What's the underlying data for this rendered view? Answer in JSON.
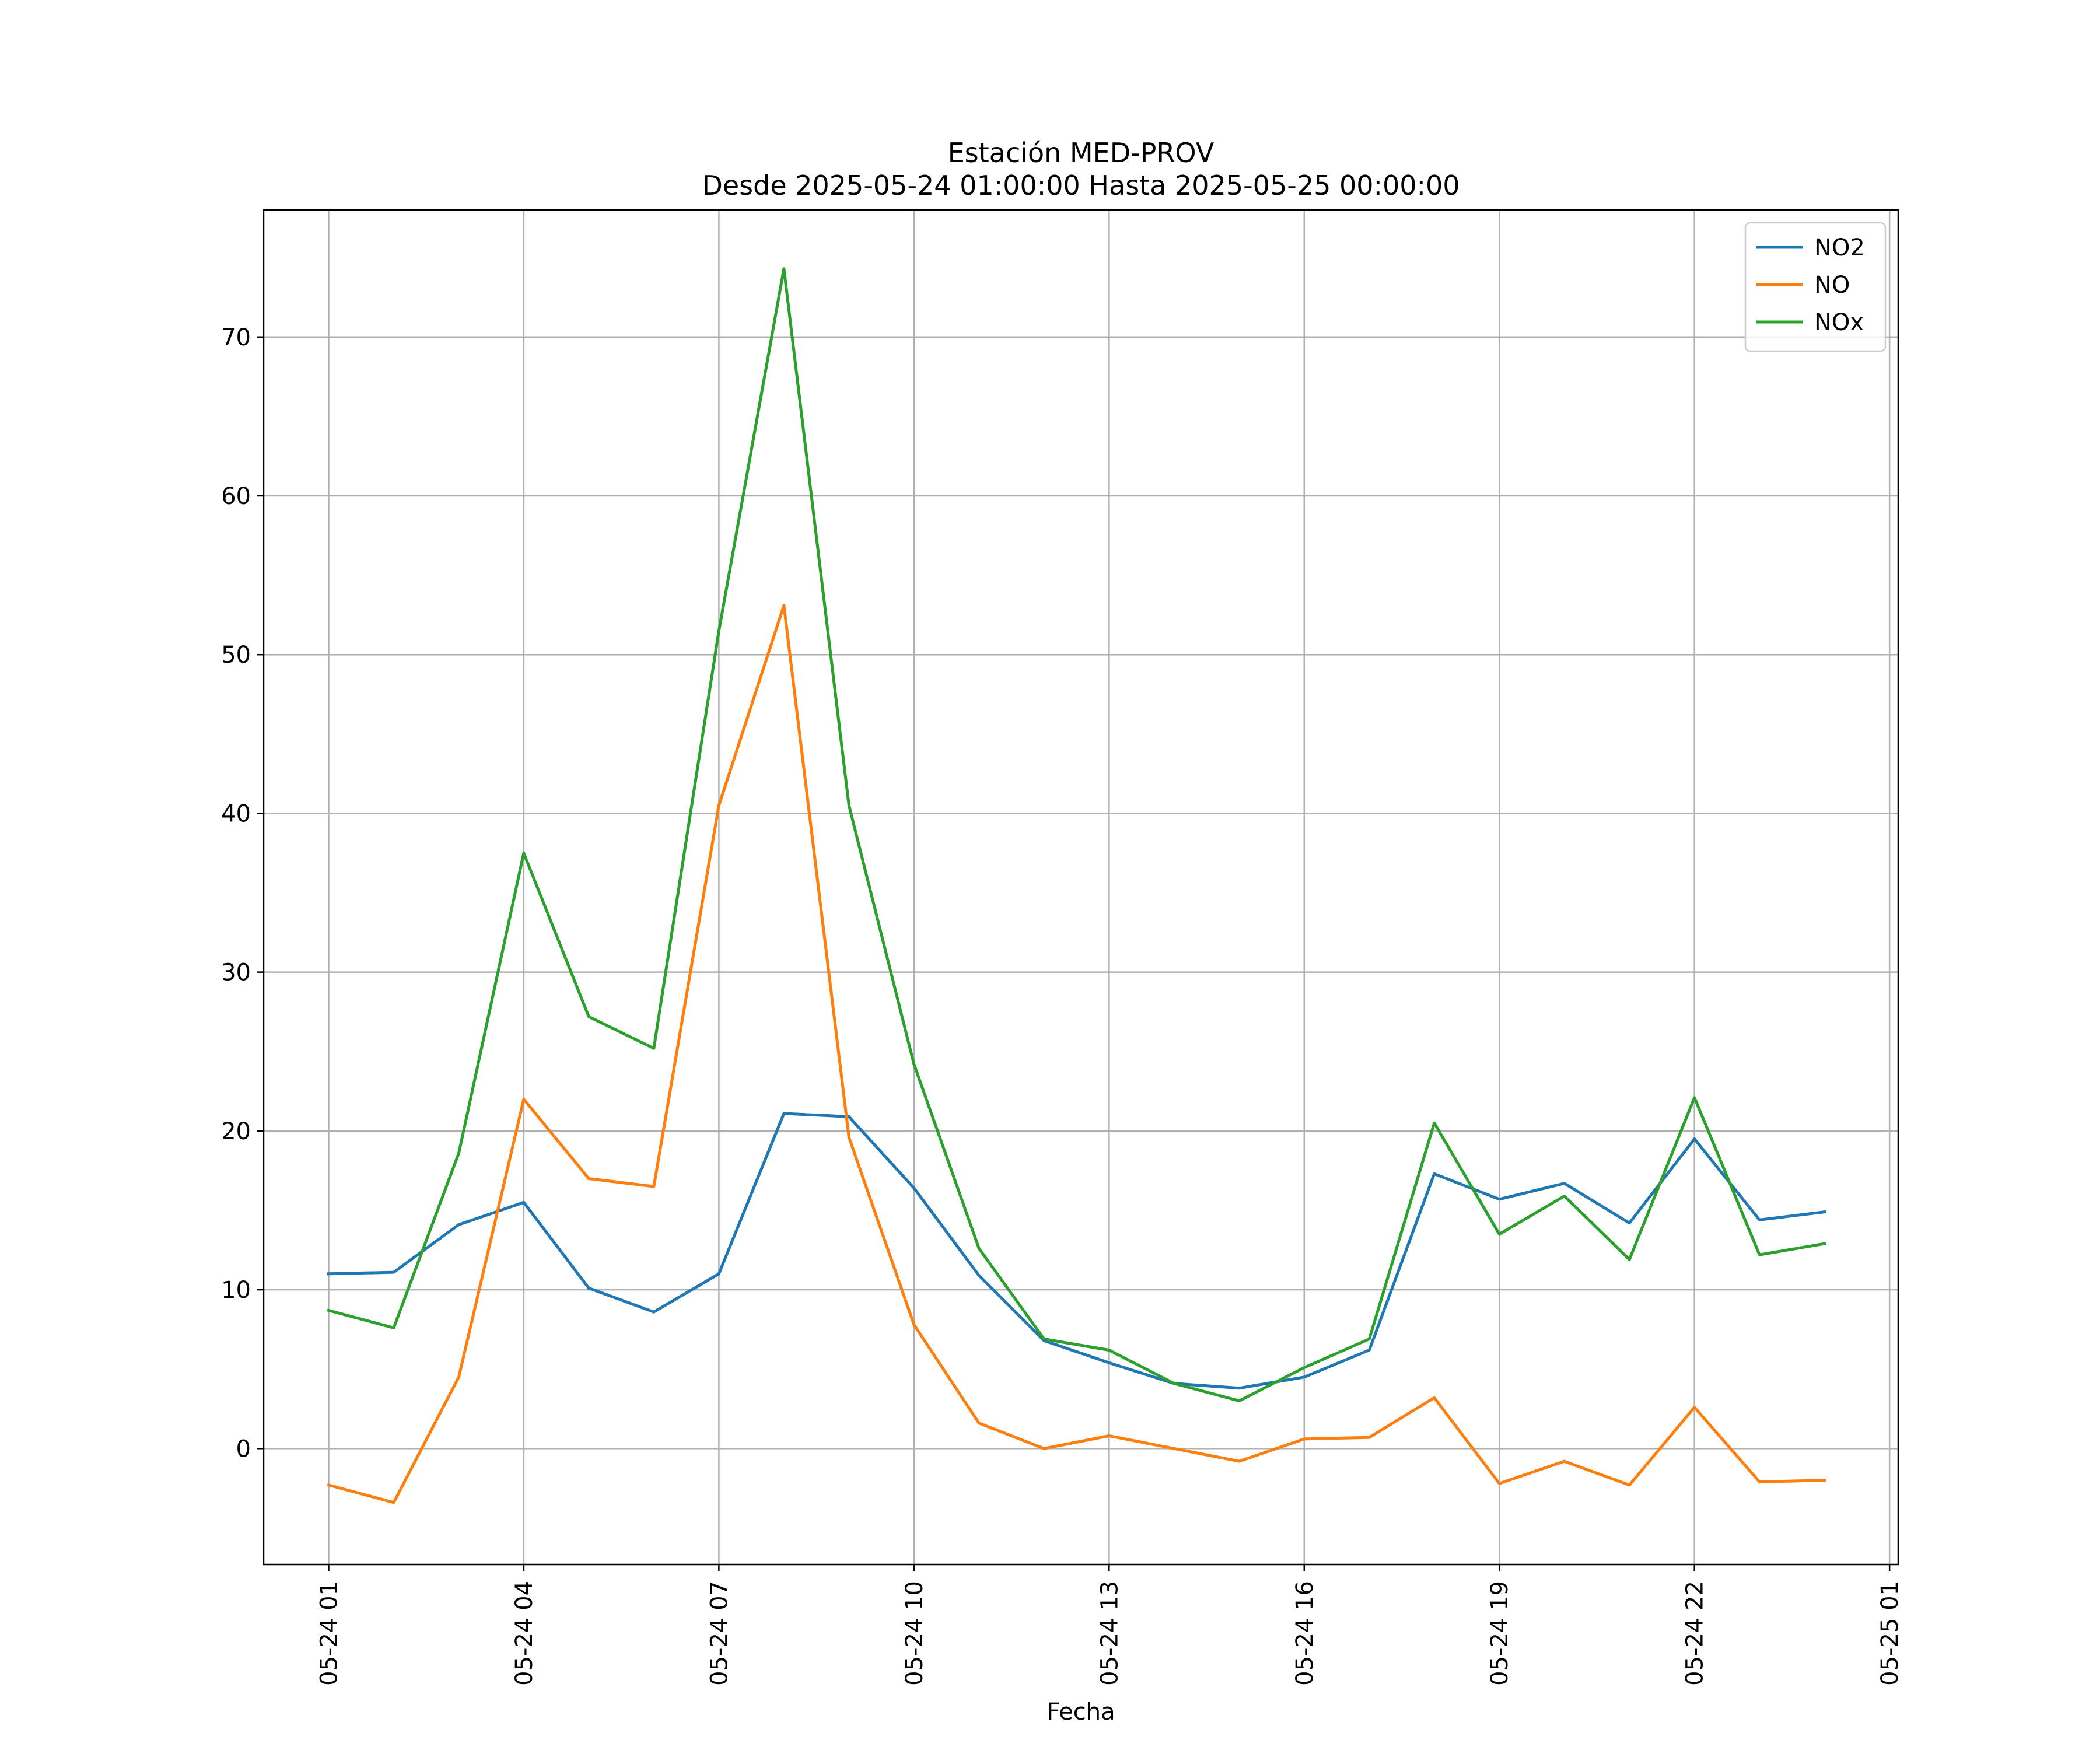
{
  "chart_data": {
    "type": "line",
    "title": "Estación MED-PROV",
    "subtitle": "Desde 2025-05-24 01:00:00 Hasta 2025-05-25 00:00:00",
    "xlabel": "Fecha",
    "ylabel": "",
    "x": [
      "2025-05-24 01:00",
      "2025-05-24 02:00",
      "2025-05-24 03:00",
      "2025-05-24 04:00",
      "2025-05-24 05:00",
      "2025-05-24 06:00",
      "2025-05-24 07:00",
      "2025-05-24 08:00",
      "2025-05-24 09:00",
      "2025-05-24 10:00",
      "2025-05-24 11:00",
      "2025-05-24 12:00",
      "2025-05-24 13:00",
      "2025-05-24 14:00",
      "2025-05-24 15:00",
      "2025-05-24 16:00",
      "2025-05-24 17:00",
      "2025-05-24 18:00",
      "2025-05-24 19:00",
      "2025-05-24 20:00",
      "2025-05-24 21:00",
      "2025-05-24 22:00",
      "2025-05-24 23:00",
      "2025-05-25 00:00"
    ],
    "xlim": [
      "2025-05-24 00:00",
      "2025-05-25 01:08"
    ],
    "ylim": [
      -7.3,
      78
    ],
    "x_ticks": [
      "2025-05-24 01:00",
      "2025-05-24 04:00",
      "2025-05-24 07:00",
      "2025-05-24 10:00",
      "2025-05-24 13:00",
      "2025-05-24 16:00",
      "2025-05-24 19:00",
      "2025-05-24 22:00",
      "2025-05-25 01:00"
    ],
    "x_tick_labels": [
      "05-24 01",
      "05-24 04",
      "05-24 07",
      "05-24 10",
      "05-24 13",
      "05-24 16",
      "05-24 19",
      "05-24 22",
      "05-25 01"
    ],
    "y_ticks": [
      0,
      10,
      20,
      30,
      40,
      50,
      60,
      70
    ],
    "y_tick_labels": [
      "0",
      "10",
      "20",
      "30",
      "40",
      "50",
      "60",
      "70"
    ],
    "grid": true,
    "legend_position": "top-right",
    "series": [
      {
        "name": "NO2",
        "color": "#1f77b4",
        "values": [
          11.0,
          11.1,
          14.1,
          15.5,
          10.1,
          8.6,
          11.0,
          21.1,
          20.9,
          16.4,
          10.9,
          6.8,
          5.4,
          4.1,
          3.8,
          4.5,
          6.2,
          17.3,
          15.7,
          16.7,
          14.2,
          19.5,
          14.4,
          14.9
        ]
      },
      {
        "name": "NO",
        "color": "#ff7f0e",
        "values": [
          -2.3,
          -3.4,
          4.5,
          22.0,
          17.0,
          16.5,
          40.5,
          53.1,
          19.6,
          7.8,
          1.6,
          0.0,
          0.8,
          0.0,
          -0.8,
          0.6,
          0.7,
          3.2,
          -2.2,
          -0.8,
          -2.3,
          2.6,
          -2.1,
          -2.0
        ]
      },
      {
        "name": "NOx",
        "color": "#2ca02c",
        "values": [
          8.7,
          7.6,
          18.6,
          37.5,
          27.2,
          25.2,
          51.5,
          74.3,
          40.5,
          24.2,
          12.6,
          6.9,
          6.2,
          4.1,
          3.0,
          5.1,
          6.9,
          20.5,
          13.5,
          15.9,
          11.9,
          22.1,
          12.2,
          12.9
        ]
      }
    ]
  }
}
